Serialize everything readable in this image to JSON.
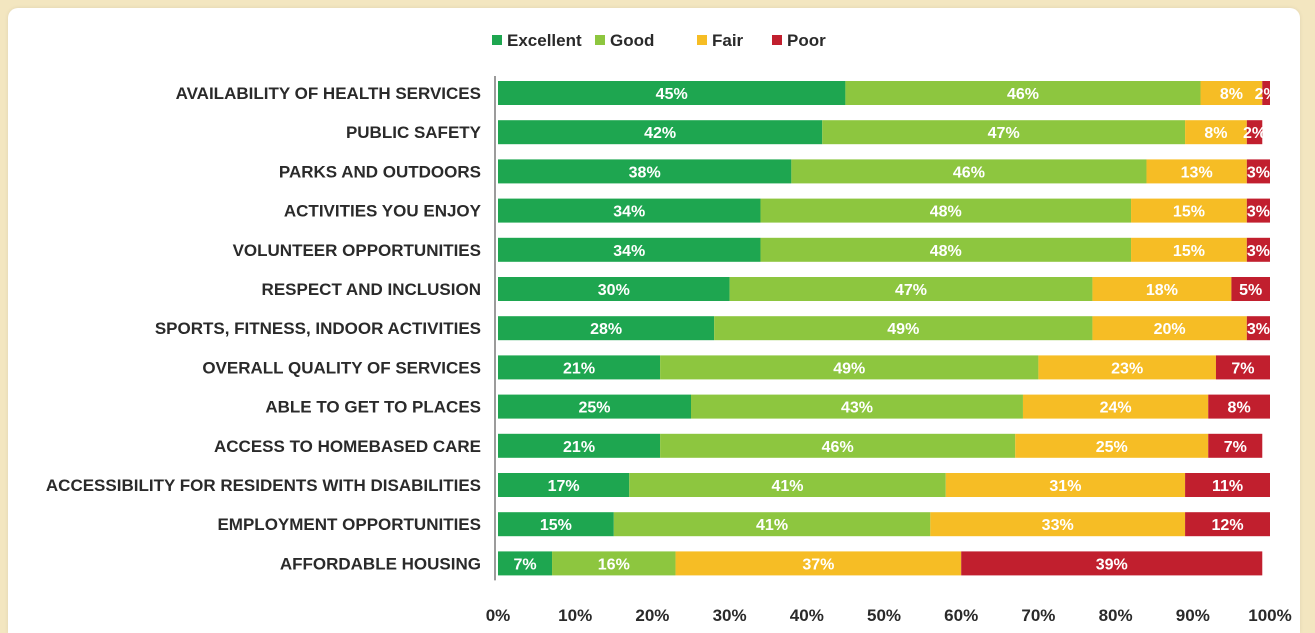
{
  "chart_data": {
    "type": "bar",
    "orientation": "horizontal",
    "stacked": true,
    "title": "",
    "xlabel": "",
    "ylabel": "",
    "xlim": [
      0,
      100
    ],
    "legend_position": "top-center",
    "grid": false,
    "categories": [
      "AVAILABILITY OF HEALTH SERVICES",
      "PUBLIC SAFETY",
      "PARKS AND OUTDOORS",
      "ACTIVITIES YOU ENJOY",
      "VOLUNTEER OPPORTUNITIES",
      "RESPECT AND INCLUSION",
      "SPORTS, FITNESS, INDOOR ACTIVITIES",
      "OVERALL QUALITY OF SERVICES",
      "ABLE TO GET TO PLACES",
      "ACCESS TO HOMEBASED CARE",
      "ACCESSIBILITY FOR RESIDENTS WITH DISABILITIES",
      "EMPLOYMENT OPPORTUNITIES",
      "AFFORDABLE HOUSING"
    ],
    "series": [
      {
        "name": "Excellent",
        "color": "#1ea650",
        "values": [
          45,
          42,
          38,
          34,
          34,
          30,
          28,
          21,
          25,
          21,
          17,
          15,
          7
        ]
      },
      {
        "name": "Good",
        "color": "#8dc63f",
        "values": [
          46,
          47,
          46,
          48,
          48,
          47,
          49,
          49,
          43,
          46,
          41,
          41,
          16
        ]
      },
      {
        "name": "Fair",
        "color": "#f6bd25",
        "values": [
          8,
          8,
          13,
          15,
          15,
          18,
          20,
          23,
          24,
          25,
          31,
          33,
          37
        ]
      },
      {
        "name": "Poor",
        "color": "#c11f2e",
        "values": [
          2,
          2,
          3,
          3,
          3,
          5,
          3,
          7,
          8,
          7,
          11,
          12,
          39
        ]
      }
    ],
    "value_suffix": "%",
    "x_ticks": [
      "0%",
      "10%",
      "20%",
      "30%",
      "40%",
      "50%",
      "60%",
      "70%",
      "80%",
      "90%",
      "100%"
    ]
  }
}
